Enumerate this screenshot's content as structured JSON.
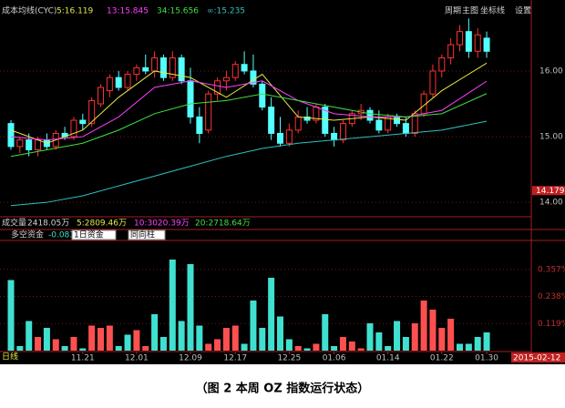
{
  "chart_data": [
    {
      "type": "candlestick",
      "title": "成本均线(CYC)",
      "up_color": "#ff3232",
      "down_color": "#54ffff",
      "ohlc": [
        [
          15.2,
          15.25,
          14.8,
          14.85
        ],
        [
          14.85,
          15.0,
          14.75,
          14.95
        ],
        [
          14.95,
          15.05,
          14.7,
          14.8
        ],
        [
          14.8,
          15.0,
          14.7,
          14.95
        ],
        [
          14.95,
          15.05,
          14.8,
          14.85
        ],
        [
          14.85,
          15.1,
          14.8,
          15.05
        ],
        [
          15.05,
          15.15,
          14.95,
          15.0
        ],
        [
          15.0,
          15.3,
          14.95,
          15.25
        ],
        [
          15.25,
          15.35,
          15.1,
          15.2
        ],
        [
          15.2,
          15.6,
          15.15,
          15.55
        ],
        [
          15.5,
          15.8,
          15.45,
          15.75
        ],
        [
          15.7,
          15.95,
          15.6,
          15.9
        ],
        [
          15.9,
          16.0,
          15.7,
          15.75
        ],
        [
          15.75,
          16.0,
          15.7,
          15.95
        ],
        [
          15.95,
          16.1,
          15.85,
          16.05
        ],
        [
          16.05,
          16.25,
          15.95,
          16.0
        ],
        [
          16.0,
          16.3,
          15.9,
          16.2
        ],
        [
          16.2,
          16.25,
          15.85,
          15.9
        ],
        [
          15.9,
          16.3,
          15.85,
          16.2
        ],
        [
          16.2,
          16.25,
          15.8,
          15.85
        ],
        [
          15.85,
          16.05,
          15.2,
          15.3
        ],
        [
          15.3,
          15.45,
          14.9,
          15.05
        ],
        [
          15.1,
          15.7,
          15.05,
          15.65
        ],
        [
          15.65,
          15.9,
          15.55,
          15.85
        ],
        [
          15.85,
          16.0,
          15.7,
          15.9
        ],
        [
          15.9,
          16.15,
          15.85,
          16.1
        ],
        [
          16.1,
          16.3,
          15.95,
          16.0
        ],
        [
          16.0,
          16.25,
          15.75,
          15.8
        ],
        [
          15.8,
          15.85,
          15.4,
          15.45
        ],
        [
          15.45,
          15.6,
          14.95,
          15.05
        ],
        [
          15.05,
          15.3,
          14.85,
          14.9
        ],
        [
          14.9,
          15.2,
          14.85,
          15.1
        ],
        [
          15.1,
          15.4,
          15.05,
          15.3
        ],
        [
          15.3,
          15.45,
          15.2,
          15.25
        ],
        [
          15.25,
          15.5,
          15.2,
          15.45
        ],
        [
          15.45,
          15.5,
          15.0,
          15.05
        ],
        [
          15.05,
          15.15,
          14.85,
          14.95
        ],
        [
          14.95,
          15.25,
          14.9,
          15.2
        ],
        [
          15.2,
          15.4,
          15.15,
          15.35
        ],
        [
          15.35,
          15.5,
          15.25,
          15.4
        ],
        [
          15.4,
          15.45,
          15.2,
          15.25
        ],
        [
          15.25,
          15.4,
          15.05,
          15.1
        ],
        [
          15.1,
          15.35,
          15.05,
          15.3
        ],
        [
          15.3,
          15.35,
          15.15,
          15.2
        ],
        [
          15.2,
          15.3,
          15.0,
          15.05
        ],
        [
          15.05,
          15.4,
          15.0,
          15.35
        ],
        [
          15.35,
          15.7,
          15.3,
          15.65
        ],
        [
          15.65,
          16.1,
          15.6,
          16.0
        ],
        [
          16.0,
          16.25,
          15.9,
          16.2
        ],
        [
          16.2,
          16.5,
          16.1,
          16.4
        ],
        [
          16.4,
          16.7,
          16.3,
          16.6
        ],
        [
          16.6,
          16.8,
          16.2,
          16.3
        ],
        [
          16.3,
          16.65,
          16.2,
          16.55
        ],
        [
          16.5,
          16.6,
          16.2,
          16.3
        ]
      ],
      "ma_x": [
        0,
        4,
        8,
        12,
        16,
        20,
        24,
        28,
        32,
        36,
        40,
        44,
        48,
        53
      ],
      "series": [
        {
          "name": "5:16.119",
          "color": "#e8e840",
          "values": [
            15.1,
            14.9,
            15.1,
            15.6,
            16.0,
            15.9,
            15.6,
            15.95,
            15.3,
            15.25,
            15.3,
            15.25,
            15.7,
            16.12
          ]
        },
        {
          "name": "13:15.845",
          "color": "#ff40ff",
          "values": [
            15.0,
            14.95,
            15.0,
            15.3,
            15.75,
            15.85,
            15.75,
            15.85,
            15.55,
            15.35,
            15.3,
            15.3,
            15.4,
            15.845
          ]
        },
        {
          "name": "34:15.656",
          "color": "#40e040",
          "values": [
            14.7,
            14.8,
            14.9,
            15.1,
            15.35,
            15.5,
            15.55,
            15.65,
            15.55,
            15.45,
            15.35,
            15.3,
            15.35,
            15.656
          ]
        },
        {
          "name": "∞:15.235",
          "color": "#30c0c0",
          "values": [
            13.95,
            14.0,
            14.1,
            14.25,
            14.4,
            14.55,
            14.7,
            14.82,
            14.9,
            14.95,
            15.0,
            15.05,
            15.1,
            15.235
          ]
        }
      ],
      "ylim": [
        13.85,
        16.97
      ],
      "yticks": [
        {
          "value": 14,
          "label": "14.00"
        },
        {
          "value": 15,
          "label": "15.00"
        },
        {
          "value": 16,
          "label": "16.00"
        }
      ],
      "price_marker": 14.179,
      "grid": true
    },
    {
      "type": "bar",
      "title": "多空资金",
      "current": {
        "value": -0.083,
        "label": "-0.083%"
      },
      "values": [
        0.31,
        0.02,
        0.13,
        0.06,
        0.1,
        0.05,
        0.02,
        0.06,
        0.01,
        0.11,
        0.1,
        0.11,
        0.02,
        0.07,
        0.09,
        0.02,
        0.16,
        0.06,
        0.4,
        0.13,
        0.38,
        0.11,
        0.03,
        0.05,
        0.1,
        0.11,
        0.03,
        0.22,
        0.1,
        0.32,
        0.15,
        0.05,
        0.02,
        0.01,
        0.03,
        0.16,
        0.02,
        0.06,
        0.04,
        0.01,
        0.12,
        0.08,
        0.02,
        0.13,
        0.06,
        0.12,
        0.22,
        0.18,
        0.1,
        0.14,
        0.03,
        0.03,
        0.06,
        0.08
      ],
      "colors": [
        "#40e0d0",
        "#40e0d0",
        "#40e0d0",
        "#ff5050",
        "#40e0d0",
        "#ff5050",
        "#40e0d0",
        "#ff5050",
        "#40e0d0",
        "#ff5050",
        "#ff5050",
        "#ff5050",
        "#40e0d0",
        "#40e0d0",
        "#ff5050",
        "#ff5050",
        "#40e0d0",
        "#40e0d0",
        "#40e0d0",
        "#40e0d0",
        "#40e0d0",
        "#40e0d0",
        "#ff5050",
        "#ff5050",
        "#ff5050",
        "#ff5050",
        "#40e0d0",
        "#40e0d0",
        "#40e0d0",
        "#40e0d0",
        "#40e0d0",
        "#40e0d0",
        "#ff5050",
        "#40e0d0",
        "#ff5050",
        "#40e0d0",
        "#40e0d0",
        "#ff5050",
        "#ff5050",
        "#ff5050",
        "#40e0d0",
        "#40e0d0",
        "#40e0d0",
        "#40e0d0",
        "#40e0d0",
        "#ff5050",
        "#ff5050",
        "#ff5050",
        "#ff5050",
        "#ff5050",
        "#40e0d0",
        "#40e0d0",
        "#40e0d0",
        "#40e0d0"
      ],
      "ylim": [
        0,
        0.476
      ],
      "yticks": [
        {
          "value": 0.119,
          "label": "0.119%"
        },
        {
          "value": 0.238,
          "label": "0.238%"
        },
        {
          "value": 0.357,
          "label": "0.357%"
        }
      ],
      "xticks": [
        {
          "value": 8,
          "label": "11.21"
        },
        {
          "value": 14,
          "label": "12.01"
        },
        {
          "value": 20,
          "label": "12.09"
        },
        {
          "value": 25,
          "label": "12.17"
        },
        {
          "value": 31,
          "label": "12.25"
        },
        {
          "value": 36,
          "label": "01.06"
        },
        {
          "value": 42,
          "label": "01.14"
        },
        {
          "value": 48,
          "label": "01.22"
        },
        {
          "value": 53,
          "label": "01.30"
        }
      ],
      "grid": true
    }
  ],
  "ui": {
    "toolbar": [
      "周期",
      "主图",
      "坐标线",
      "设置"
    ],
    "volume_header": [
      "成交量",
      "2418.05万",
      "5:2809.46万",
      "10:3020.39万",
      "20:2718.64万"
    ],
    "dropdowns": [
      "1日资金",
      "同向柱"
    ],
    "period": "日线",
    "date": "2015-02-12",
    "caption": "（图 2  本周 OZ 指数运行状态）"
  }
}
